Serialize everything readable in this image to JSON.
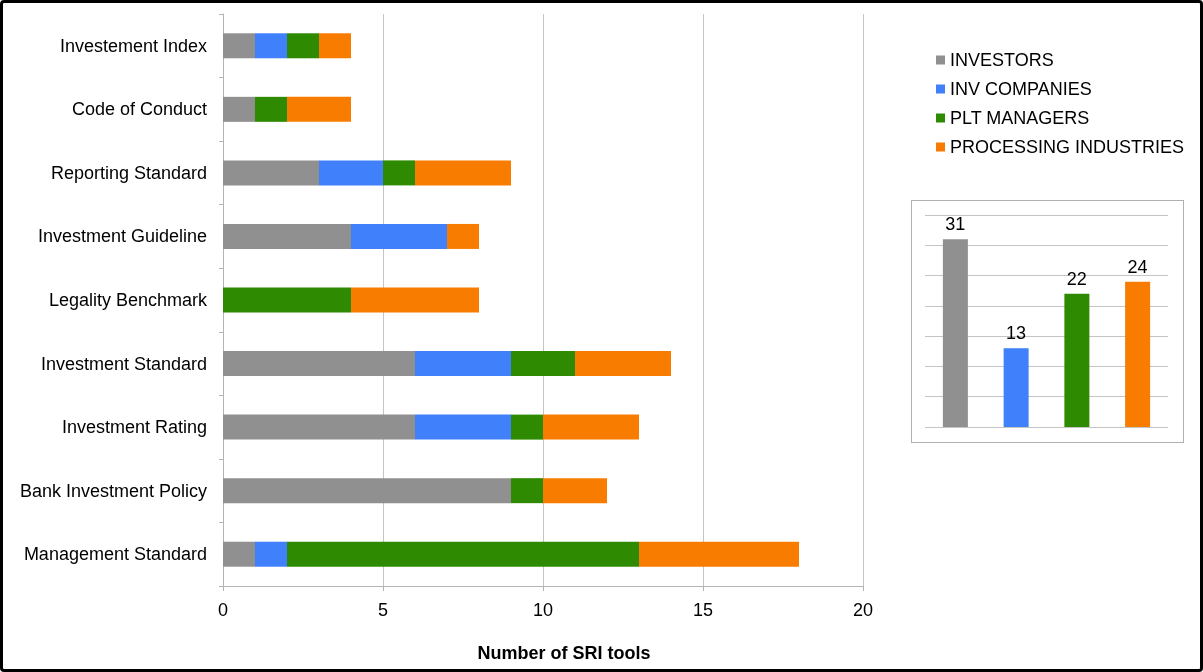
{
  "chart_data": [
    {
      "type": "bar",
      "orientation": "horizontal",
      "stacked": true,
      "categories": [
        "Investement Index",
        "Code of Conduct",
        "Reporting Standard",
        "Investment Guideline",
        "Legality Benchmark",
        "Investment Standard",
        "Investment Rating",
        "Bank Investment Policy",
        "Management Standard"
      ],
      "series": [
        {
          "name": "INVESTORS",
          "color": "#909090",
          "values": [
            1,
            1,
            3,
            4,
            0,
            6,
            6,
            9,
            1
          ]
        },
        {
          "name": "INV COMPANIES",
          "color": "#4080fa",
          "values": [
            1,
            0,
            2,
            3,
            0,
            3,
            3,
            0,
            1
          ]
        },
        {
          "name": "PLT MANAGERS",
          "color": "#2e8a00",
          "values": [
            1,
            1,
            1,
            0,
            4,
            2,
            1,
            1,
            11
          ]
        },
        {
          "name": "PROCESSING INDUSTRIES",
          "color": "#f87c00",
          "values": [
            1,
            2,
            3,
            1,
            4,
            3,
            3,
            2,
            5
          ]
        }
      ],
      "xlabel": "Number of SRI tools",
      "xlim": [
        0,
        20
      ],
      "xticks": [
        0,
        5,
        10,
        15,
        20
      ],
      "grid": "x",
      "legend": "top right"
    },
    {
      "type": "bar",
      "categories": [
        null,
        null,
        null,
        null
      ],
      "values": [
        31,
        13,
        22,
        24
      ],
      "colors": [
        "#909090",
        "#4080fa",
        "#2e8a00",
        "#f87c00"
      ],
      "ylim": [
        0,
        35
      ],
      "yticks": [
        {
          "value": 0,
          "label": null
        },
        {
          "value": 5,
          "label": null
        },
        {
          "value": 10,
          "label": null
        },
        {
          "value": 15,
          "label": null
        },
        {
          "value": 20,
          "label": null
        },
        {
          "value": 25,
          "label": null
        },
        {
          "value": 30,
          "label": null
        },
        {
          "value": 35,
          "label": null
        }
      ],
      "grid": "y",
      "data_labels": true
    }
  ]
}
